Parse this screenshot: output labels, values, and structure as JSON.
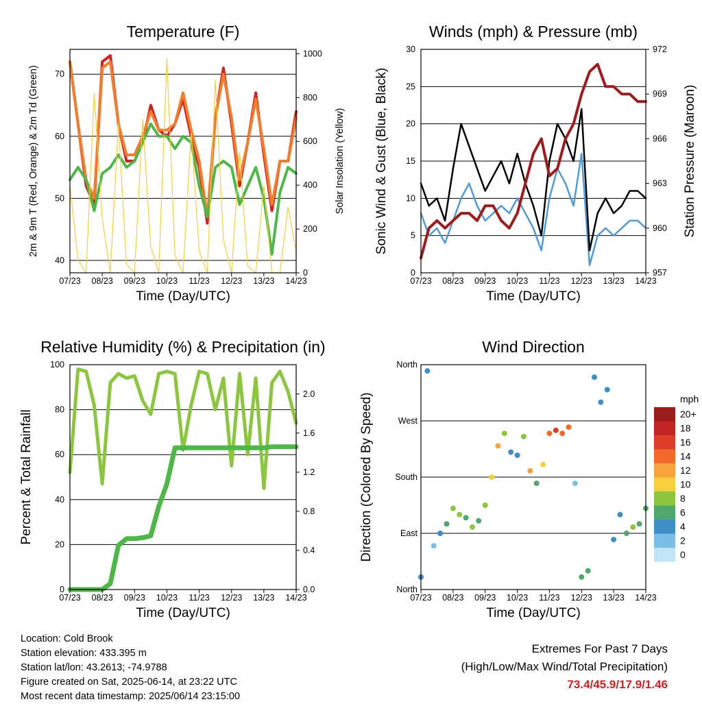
{
  "x_ticks": [
    "07/23",
    "08/23",
    "09/23",
    "10/23",
    "11/23",
    "12/23",
    "13/23",
    "14/23"
  ],
  "footer": {
    "location": "Location: Cold Brook",
    "elevation": "Station elevation: 433.395 m",
    "latlon": "Station lat/lon: 43.2613; -74.9788",
    "created": "Figure created on Sat, 2025-06-14, at 23:22 UTC",
    "recent": "Most recent data timestamp: 2025/06/14 23:15:00"
  },
  "extremes": {
    "line1": "Extremes For Past 7 Days",
    "line2": "(High/Low/Max Wind/Total Precipitation)",
    "values": "73.4/45.9/17.9/1.46"
  },
  "chart_data": [
    {
      "type": "line",
      "title": "Temperature (F)",
      "xlabel": "Time (Day/UTC)",
      "ylabel": "2m & 9m T (Red, Orange) & 2m Td (Green)",
      "y2label": "Solar Insolation (Yellow)",
      "ylim": [
        38,
        74
      ],
      "y2lim": [
        0,
        1020
      ],
      "y_ticks": [
        40,
        50,
        60,
        70
      ],
      "y2_ticks": [
        0,
        200,
        400,
        600,
        800,
        1000
      ],
      "x": [
        0,
        0.25,
        0.5,
        0.75,
        1,
        1.25,
        1.5,
        1.75,
        2,
        2.25,
        2.5,
        2.75,
        3,
        3.25,
        3.5,
        3.75,
        4,
        4.25,
        4.5,
        4.75,
        5,
        5.25,
        5.5,
        5.75,
        6,
        6.25,
        6.5,
        6.75,
        7
      ],
      "series": [
        {
          "color": "#d42020",
          "values": [
            72,
            62,
            52,
            49,
            72,
            73,
            62,
            56,
            56,
            59,
            65,
            61,
            60,
            62,
            66,
            60,
            55,
            46,
            63,
            71,
            62,
            52,
            59,
            67,
            57,
            48,
            56,
            56,
            64
          ]
        },
        {
          "color": "#f37d2a",
          "values": [
            72,
            62,
            53,
            50,
            71,
            72,
            62,
            57,
            57,
            60,
            64,
            61,
            61,
            62,
            67,
            61,
            56,
            47,
            63,
            70,
            63,
            53,
            59,
            66,
            58,
            49,
            56,
            56,
            63
          ]
        },
        {
          "color": "#4db848",
          "values": [
            53,
            55,
            53,
            48,
            54,
            55,
            57,
            55,
            56,
            59,
            62,
            60,
            60,
            58,
            60,
            59,
            52,
            47,
            55,
            56,
            55,
            49,
            52,
            55,
            50,
            41,
            51,
            55,
            54
          ]
        },
        {
          "color": "#f5cf3c",
          "axis": "y2",
          "values": [
            400,
            60,
            0,
            820,
            250,
            0,
            680,
            40,
            0,
            700,
            120,
            0,
            980,
            80,
            0,
            640,
            100,
            0,
            880,
            150,
            0,
            550,
            30,
            0,
            400,
            0,
            0,
            300,
            100
          ]
        }
      ]
    },
    {
      "type": "line",
      "title": "Winds (mph) & Pressure (mb)",
      "xlabel": "Time (Day/UTC)",
      "ylabel": "Sonic Wind & Gust (Blue, Black)",
      "y2label": "Station Pressure (Maroon)",
      "ylim": [
        0,
        30
      ],
      "y2lim": [
        957,
        972
      ],
      "y_ticks": [
        0,
        5,
        10,
        15,
        20,
        25,
        30
      ],
      "y2_ticks": [
        957,
        960,
        963,
        966,
        969,
        972
      ],
      "x": [
        0,
        0.25,
        0.5,
        0.75,
        1,
        1.25,
        1.5,
        1.75,
        2,
        2.25,
        2.5,
        2.75,
        3,
        3.25,
        3.5,
        3.75,
        4,
        4.25,
        4.5,
        4.75,
        5,
        5.25,
        5.5,
        5.75,
        6,
        6.25,
        6.5,
        6.75,
        7
      ],
      "series": [
        {
          "color": "#4e9bd6",
          "values": [
            8,
            5,
            6,
            4,
            7,
            10,
            12,
            9,
            7,
            8,
            9,
            8,
            10,
            8,
            6,
            3,
            10,
            14,
            12,
            9,
            16,
            1,
            5,
            6,
            5,
            6,
            7,
            7,
            6
          ]
        },
        {
          "color": "#000000",
          "values": [
            12,
            9,
            10,
            7,
            14,
            20,
            17,
            14,
            11,
            13,
            15,
            12,
            16,
            12,
            9,
            5,
            15,
            20,
            18,
            15,
            22,
            3,
            8,
            10,
            8,
            9,
            11,
            11,
            10
          ]
        },
        {
          "color": "#a01c1c",
          "axis": "y2",
          "values": [
            958,
            960,
            960.5,
            960,
            960.5,
            961,
            961,
            960.5,
            961.5,
            961.5,
            960.5,
            960,
            961,
            963,
            965,
            966,
            963.5,
            964,
            966,
            967,
            969,
            970.5,
            971,
            969.5,
            969.5,
            969,
            969,
            968.5,
            968.5
          ]
        }
      ]
    },
    {
      "type": "line",
      "title": "Relative Humidity (%) & Precipitation (in)",
      "xlabel": "Time (Day/UTC)",
      "ylabel": "Percent & Total Rainfall",
      "ylim": [
        0,
        100
      ],
      "y2lim": [
        0,
        2.3
      ],
      "y_ticks": [
        0,
        20,
        40,
        60,
        80,
        100
      ],
      "y2_ticks": [
        0.0,
        0.4,
        0.8,
        1.2,
        1.6,
        2.0
      ],
      "x": [
        0,
        0.25,
        0.5,
        0.75,
        1,
        1.25,
        1.5,
        1.75,
        2,
        2.25,
        2.5,
        2.75,
        3,
        3.25,
        3.5,
        3.75,
        4,
        4.25,
        4.5,
        4.75,
        5,
        5.25,
        5.5,
        5.75,
        6,
        6.25,
        6.5,
        6.75,
        7
      ],
      "series": [
        {
          "color": "#8cc63f",
          "values": [
            52,
            98,
            97,
            82,
            47,
            92,
            96,
            94,
            95,
            84,
            78,
            96,
            97,
            96,
            62,
            82,
            97,
            96,
            80,
            94,
            55,
            96,
            60,
            94,
            45,
            92,
            97,
            88,
            74
          ]
        },
        {
          "color": "#4db848",
          "axis": "y2",
          "values": [
            0,
            0,
            0,
            0,
            0,
            0.06,
            0.45,
            0.52,
            0.52,
            0.53,
            0.55,
            0.85,
            1.08,
            1.45,
            1.45,
            1.45,
            1.45,
            1.45,
            1.45,
            1.45,
            1.45,
            1.45,
            1.45,
            1.45,
            1.45,
            1.46,
            1.46,
            1.46,
            1.46
          ]
        }
      ]
    },
    {
      "type": "scatter",
      "title": "Wind Direction",
      "xlabel": "Time (Day/UTC)",
      "ylabel": "Direction (Colored By Speed)",
      "ylim": [
        0,
        360
      ],
      "y_ticks": [
        "North",
        "East",
        "South",
        "West",
        "North"
      ],
      "legend_title": "mph",
      "legend_labels": [
        "20+",
        "18",
        "16",
        "14",
        "12",
        "10",
        "8",
        "6",
        "4",
        "2",
        "0"
      ],
      "legend_colors": [
        "#9b1c1c",
        "#c32424",
        "#e03c2c",
        "#f36b2b",
        "#f9a33e",
        "#f5cf3c",
        "#8cc63f",
        "#4fa86b",
        "#3d8fc8",
        "#7cbde8",
        "#bfe5f7"
      ],
      "x": [
        0,
        0.2,
        0.4,
        0.6,
        0.8,
        1,
        1.2,
        1.4,
        1.6,
        1.8,
        2,
        2.2,
        2.4,
        2.6,
        2.8,
        3,
        3.2,
        3.4,
        3.6,
        3.8,
        4,
        4.2,
        4.4,
        4.6,
        4.8,
        5,
        5.2,
        5.4,
        5.6,
        5.8,
        6,
        6.2,
        6.4,
        6.6,
        6.8,
        7
      ],
      "series": [
        {
          "name": "Direction",
          "values": [
            20,
            350,
            70,
            90,
            105,
            130,
            120,
            115,
            100,
            110,
            135,
            180,
            230,
            250,
            220,
            215,
            245,
            190,
            170,
            200,
            250,
            255,
            250,
            260,
            170,
            20,
            30,
            340,
            300,
            320,
            80,
            120,
            90,
            100,
            105,
            130
          ]
        },
        {
          "name": "Speed",
          "values": [
            4,
            4,
            2,
            4,
            6,
            8,
            8,
            6,
            8,
            6,
            8,
            10,
            12,
            8,
            4,
            4,
            8,
            12,
            6,
            10,
            14,
            16,
            14,
            14,
            2,
            6,
            6,
            4,
            4,
            4,
            4,
            4,
            6,
            8,
            6,
            6
          ]
        }
      ]
    }
  ]
}
